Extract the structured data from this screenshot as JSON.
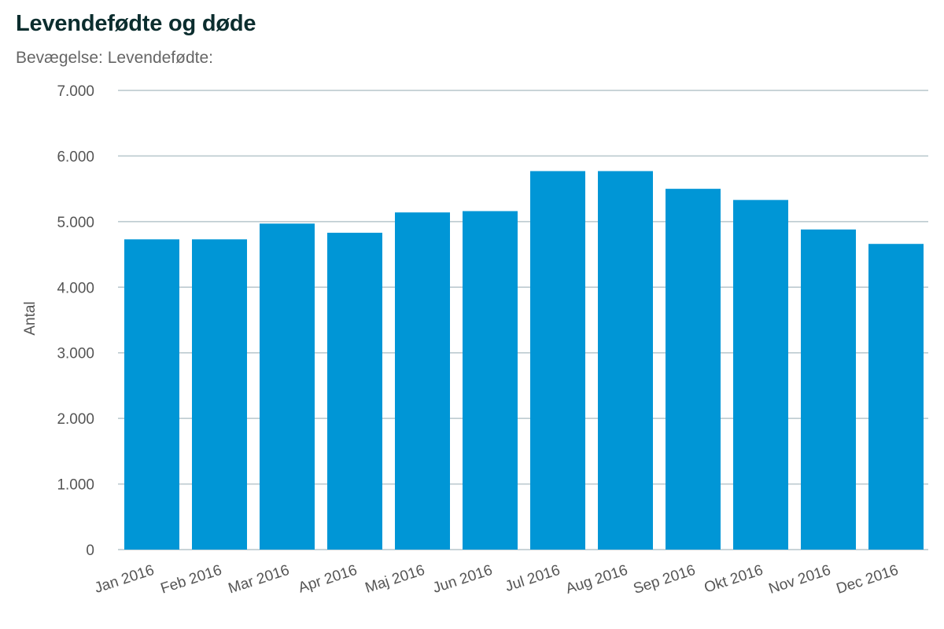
{
  "chart_data": {
    "type": "bar",
    "title": "Levendefødte og døde",
    "subtitle": "Bevægelse: Levendefødte:",
    "ylabel": "Antal",
    "xlabel": "",
    "ylim": [
      0,
      7000
    ],
    "yticks": [
      0,
      1000,
      2000,
      3000,
      4000,
      5000,
      6000,
      7000
    ],
    "ytick_labels": [
      "0",
      "1.000",
      "2.000",
      "3.000",
      "4.000",
      "5.000",
      "6.000",
      "7.000"
    ],
    "categories": [
      "Jan 2016",
      "Feb 2016",
      "Mar 2016",
      "Apr 2016",
      "Maj 2016",
      "Jun 2016",
      "Jul 2016",
      "Aug 2016",
      "Sep 2016",
      "Okt 2016",
      "Nov 2016",
      "Dec 2016"
    ],
    "values": [
      4730,
      4730,
      4970,
      4830,
      5140,
      5160,
      5770,
      5770,
      5500,
      5330,
      4880,
      4660
    ],
    "bar_color": "#0096d6",
    "grid_color": "#b7c6cc",
    "grid": true,
    "legend": false
  }
}
